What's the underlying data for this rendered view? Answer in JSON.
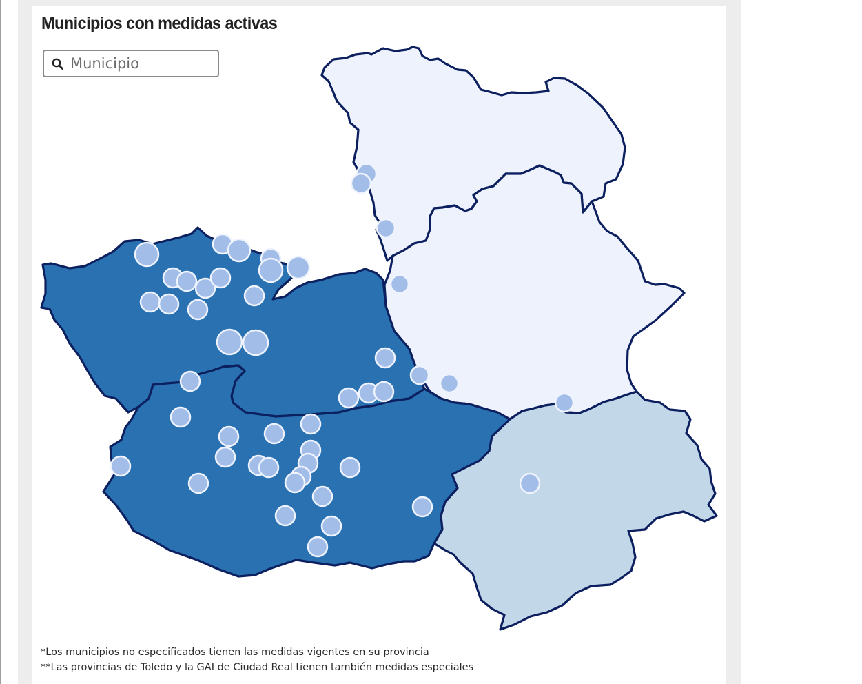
{
  "title": "Municipios con medidas activas",
  "search": {
    "placeholder": "Municipio",
    "value": ""
  },
  "map": {
    "region": "Castilla-La Mancha",
    "fill_colors": {
      "high": "#2971b1",
      "medium": "#c2d7e7",
      "low": "#eef2fd",
      "outline": "#0c1f5e",
      "marker": "#a3bde9"
    },
    "provinces": [
      {
        "key": "guadalajara",
        "level": "low"
      },
      {
        "key": "cuenca",
        "level": "low"
      },
      {
        "key": "toledo",
        "level": "high"
      },
      {
        "key": "ciudad-real",
        "level": "high"
      },
      {
        "key": "albacete",
        "level": "medium"
      }
    ]
  },
  "notes": [
    "*Los municipios no especificados tienen las medidas vigentes en su provincia",
    "**Las provincias de Toledo y la GAI de Ciudad Real tienen también medidas especiales"
  ]
}
